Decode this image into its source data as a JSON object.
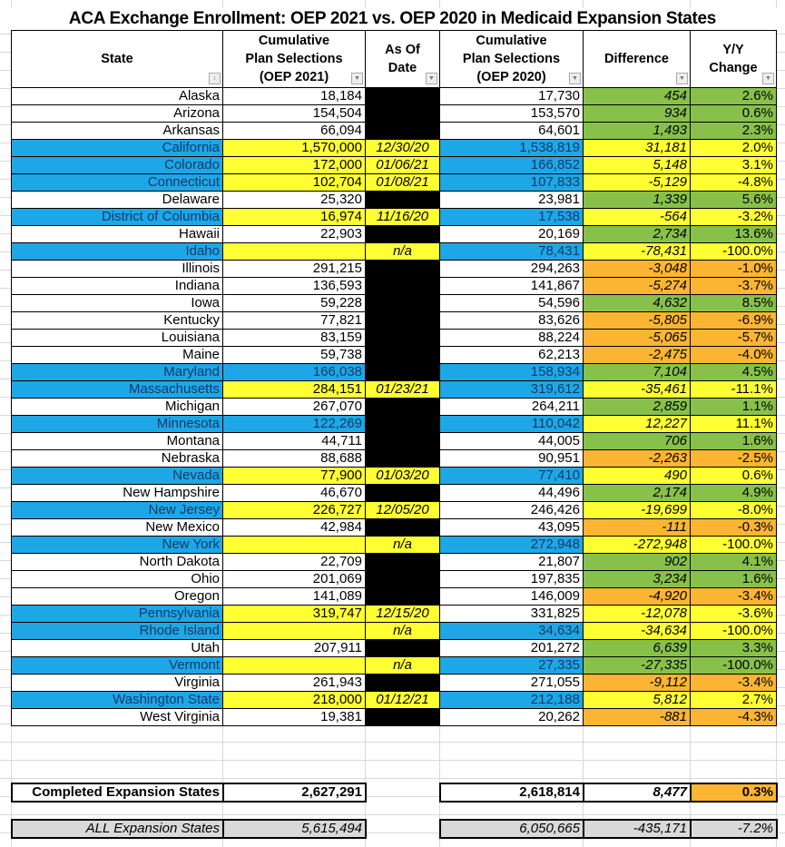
{
  "title": "ACA Exchange Enrollment: OEP 2021 vs. OEP 2020 in Medicaid Expansion States",
  "colors": {
    "w": "#ffffff",
    "b": "#1ea7e6",
    "y": "#ffff33",
    "k": "#000000",
    "g": "#88c14a",
    "o": "#fcb532"
  },
  "headers": [
    {
      "l1": "",
      "l2": "State",
      "l3": "",
      "icon": "sort-filter-icon"
    },
    {
      "l1": "Cumulative",
      "l2": "Plan Selections",
      "l3": "(OEP 2021)",
      "icon": "filter-dropdown-icon"
    },
    {
      "l1": "As Of",
      "l2": "Date",
      "l3": "",
      "icon": "filter-dropdown-icon"
    },
    {
      "l1": "Cumulative",
      "l2": "Plan Selections",
      "l3": "(OEP 2020)",
      "icon": "filter-dropdown-icon"
    },
    {
      "l1": "",
      "l2": "Difference",
      "l3": "",
      "icon": "filter-dropdown-icon"
    },
    {
      "l1": "Y/Y",
      "l2": "Change",
      "l3": "",
      "icon": "filter-dropdown-icon"
    }
  ],
  "rows": [
    [
      "Alaska",
      "18,184",
      "",
      "17,730",
      "454",
      "2.6%",
      "wwkwg"
    ],
    [
      "Arizona",
      "154,504",
      "",
      "153,570",
      "934",
      "0.6%",
      "wwkwg"
    ],
    [
      "Arkansas",
      "66,094",
      "",
      "64,601",
      "1,493",
      "2.3%",
      "wwkwg"
    ],
    [
      "California",
      "1,570,000",
      "12/30/20",
      "1,538,819",
      "31,181",
      "2.0%",
      "byyby"
    ],
    [
      "Colorado",
      "172,000",
      "01/06/21",
      "166,852",
      "5,148",
      "3.1%",
      "byyby"
    ],
    [
      "Connecticut",
      "102,704",
      "01/08/21",
      "107,833",
      "-5,129",
      "-4.8%",
      "byyby"
    ],
    [
      "Delaware",
      "25,320",
      "",
      "23,981",
      "1,339",
      "5.6%",
      "wwkwg"
    ],
    [
      "District of Columbia",
      "16,974",
      "11/16/20",
      "17,538",
      "-564",
      "-3.2%",
      "byyby"
    ],
    [
      "Hawaii",
      "22,903",
      "",
      "20,169",
      "2,734",
      "13.6%",
      "wwkwg"
    ],
    [
      "Idaho",
      "",
      "n/a",
      "78,431",
      "-78,431",
      "-100.0%",
      "byyby"
    ],
    [
      "Illinois",
      "291,215",
      "",
      "294,263",
      "-3,048",
      "-1.0%",
      "wwkwo"
    ],
    [
      "Indiana",
      "136,593",
      "",
      "141,867",
      "-5,274",
      "-3.7%",
      "wwkwo"
    ],
    [
      "Iowa",
      "59,228",
      "",
      "54,596",
      "4,632",
      "8.5%",
      "wwkwg"
    ],
    [
      "Kentucky",
      "77,821",
      "",
      "83,626",
      "-5,805",
      "-6.9%",
      "wwkwo"
    ],
    [
      "Louisiana",
      "83,159",
      "",
      "88,224",
      "-5,065",
      "-5.7%",
      "wwkwo"
    ],
    [
      "Maine",
      "59,738",
      "",
      "62,213",
      "-2,475",
      "-4.0%",
      "wwkwo"
    ],
    [
      "Maryland",
      "166,038",
      "",
      "158,934",
      "7,104",
      "4.5%",
      "bbkbg"
    ],
    [
      "Massachusetts",
      "284,151",
      "01/23/21",
      "319,612",
      "-35,461",
      "-11.1%",
      "byyby"
    ],
    [
      "Michigan",
      "267,070",
      "",
      "264,211",
      "2,859",
      "1.1%",
      "wwkwg"
    ],
    [
      "Minnesota",
      "122,269",
      "",
      "110,042",
      "12,227",
      "11.1%",
      "bbkby"
    ],
    [
      "Montana",
      "44,711",
      "",
      "44,005",
      "706",
      "1.6%",
      "wwkwg"
    ],
    [
      "Nebraska",
      "88,688",
      "",
      "90,951",
      "-2,263",
      "-2.5%",
      "wwkwo"
    ],
    [
      "Nevada",
      "77,900",
      "01/03/20",
      "77,410",
      "490",
      "0.6%",
      "byyby"
    ],
    [
      "New Hampshire",
      "46,670",
      "",
      "44,496",
      "2,174",
      "4.9%",
      "wwkwg"
    ],
    [
      "New Jersey",
      "226,727",
      "12/05/20",
      "246,426",
      "-19,699",
      "-8.0%",
      "byywy"
    ],
    [
      "New Mexico",
      "42,984",
      "",
      "43,095",
      "-111",
      "-0.3%",
      "wwkwo"
    ],
    [
      "New York",
      "",
      "n/a",
      "272,948",
      "-272,948",
      "-100.0%",
      "byyby"
    ],
    [
      "North Dakota",
      "22,709",
      "",
      "21,807",
      "902",
      "4.1%",
      "wwkwg"
    ],
    [
      "Ohio",
      "201,069",
      "",
      "197,835",
      "3,234",
      "1.6%",
      "wwkwg"
    ],
    [
      "Oregon",
      "141,089",
      "",
      "146,009",
      "-4,920",
      "-3.4%",
      "wwkwo"
    ],
    [
      "Pennsylvania",
      "319,747",
      "12/15/20",
      "331,825",
      "-12,078",
      "-3.6%",
      "byywy"
    ],
    [
      "Rhode Island",
      "",
      "n/a",
      "34,634",
      "-34,634",
      "-100.0%",
      "byyby"
    ],
    [
      "Utah",
      "207,911",
      "",
      "201,272",
      "6,639",
      "3.3%",
      "wwkwg"
    ],
    [
      "Vermont",
      "",
      "n/a",
      "27,335",
      "-27,335",
      "-100.0%",
      "byybg"
    ],
    [
      "Virginia",
      "261,943",
      "",
      "271,055",
      "-9,112",
      "-3.4%",
      "wwkwo"
    ],
    [
      "Washington State",
      "218,000",
      "01/12/21",
      "212,188",
      "5,812",
      "2.7%",
      "byyby"
    ],
    [
      "West Virginia",
      "19,381",
      "",
      "20,262",
      "-881",
      "-4.3%",
      "wwkwo"
    ]
  ],
  "completed": {
    "label": "Completed Expansion States",
    "oep2021": "2,627,291",
    "oep2020": "2,618,814",
    "difference": "8,477",
    "yy": "0.3%"
  },
  "all": {
    "label": "ALL Expansion States",
    "oep2021": "5,615,494",
    "oep2020": "6,050,665",
    "difference": "-435,171",
    "yy": "-7.2%"
  }
}
